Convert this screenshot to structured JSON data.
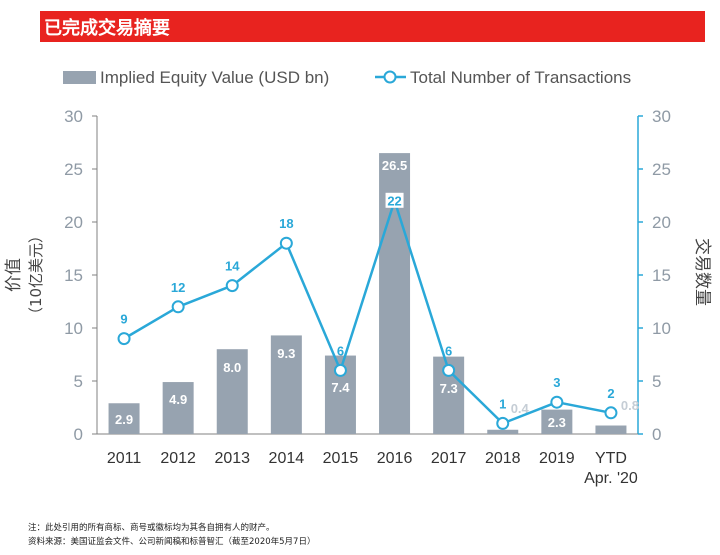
{
  "header": {
    "title": "已完成交易摘要"
  },
  "chart_data": {
    "type": "bar",
    "categories": [
      "2011",
      "2012",
      "2013",
      "2014",
      "2015",
      "2016",
      "2017",
      "2018",
      "2019",
      "YTD\nApr. '20"
    ],
    "series": [
      {
        "name": "Implied Equity Value (USD bn)",
        "type": "bar",
        "axis": "left",
        "values": [
          2.9,
          4.9,
          8.0,
          9.3,
          7.4,
          26.5,
          7.3,
          0.4,
          2.3,
          0.8
        ],
        "labels": [
          "2.9",
          "4.9",
          "8.0",
          "9.3",
          "7.4",
          "26.5",
          "7.3",
          "0.4",
          "2.3",
          "0.8"
        ],
        "color": "#97a3b0"
      },
      {
        "name": "Total Number of Transactions",
        "type": "line",
        "axis": "right",
        "values": [
          9,
          12,
          14,
          18,
          6,
          22,
          6,
          1,
          3,
          2
        ],
        "labels": [
          "9",
          "12",
          "14",
          "18",
          "6",
          "22",
          "6",
          "1",
          "3",
          "2"
        ],
        "color": "#2aa8d8"
      }
    ],
    "ylabel_left": "价值\n（10亿美元）",
    "ylabel_right": "交易数量",
    "ylim_left": [
      0,
      30
    ],
    "ylim_right": [
      0,
      30
    ],
    "yticks": [
      "0",
      "5",
      "10",
      "15",
      "20",
      "25",
      "30"
    ],
    "grid": false,
    "legend": "top"
  },
  "footnotes": {
    "note": "注：此处引用的所有商标、商号或徽标均为其各自拥有人的财产。",
    "source": "资料来源：美国证监会文件、公司新闻稿和标普智汇（截至2020年5月7日）"
  }
}
